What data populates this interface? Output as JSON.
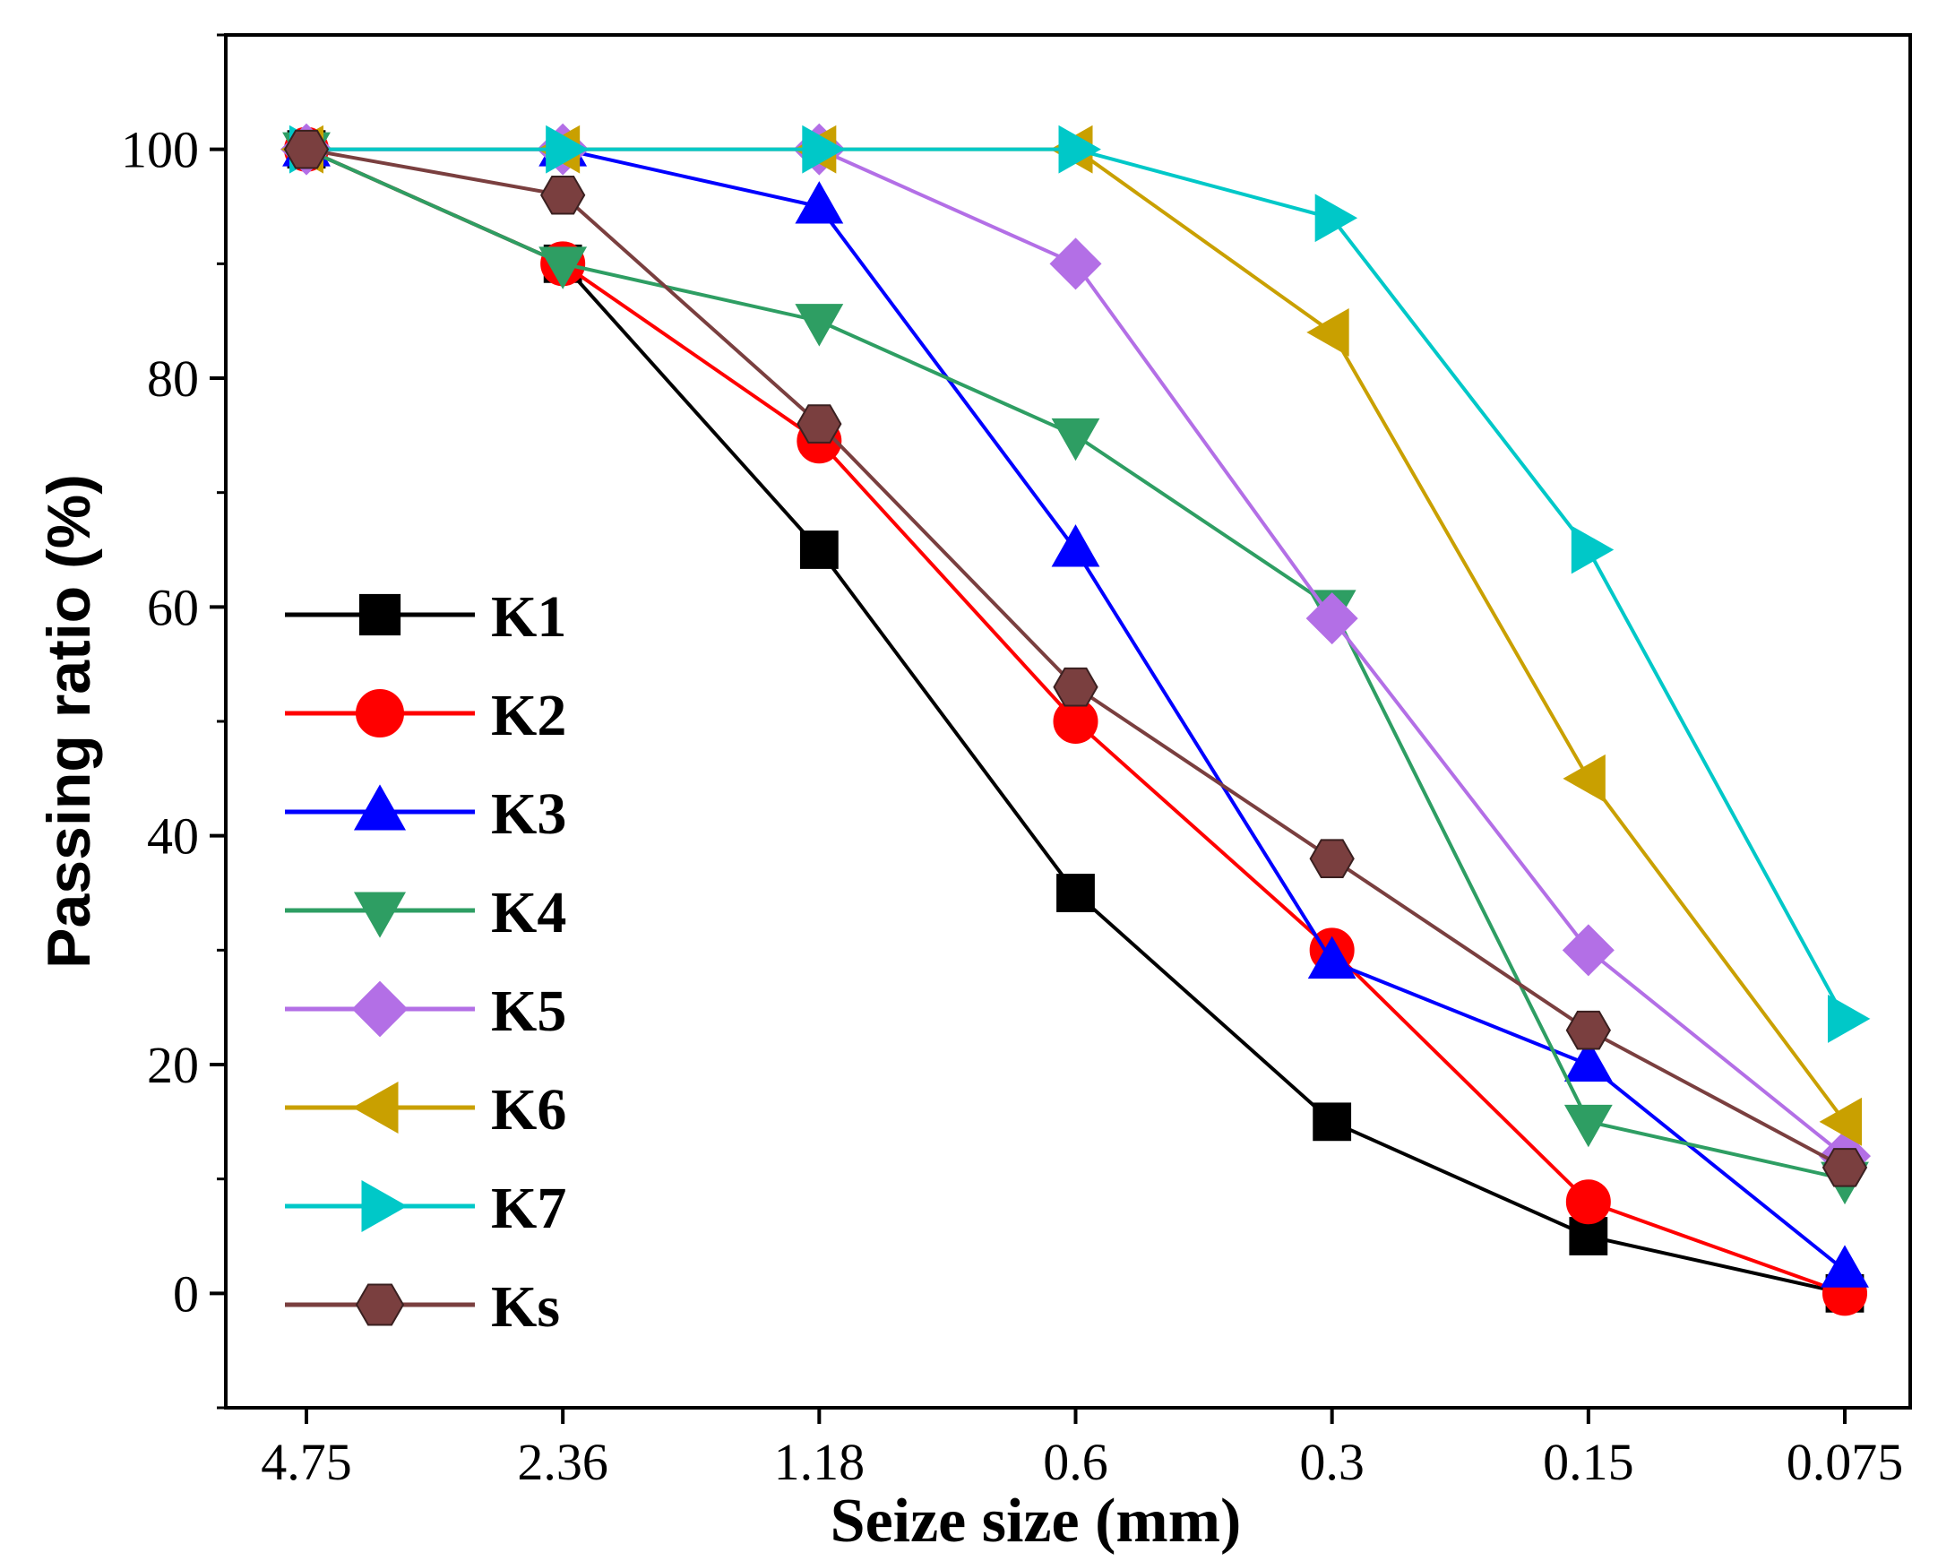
{
  "chart_data": {
    "type": "line",
    "title": "",
    "xlabel": "Seize size (mm)",
    "ylabel": "Passing ratio (%)",
    "categories": [
      "4.75",
      "2.36",
      "1.18",
      "0.6",
      "0.3",
      "0.15",
      "0.075"
    ],
    "ylim": [
      -10,
      110
    ],
    "yticks": [
      0,
      20,
      40,
      60,
      80,
      100
    ],
    "grid": false,
    "legend_position": "left",
    "series": [
      {
        "name": "K1",
        "color": "#000000",
        "marker": "square",
        "values": [
          100,
          90,
          65,
          35,
          15,
          5,
          0
        ]
      },
      {
        "name": "K2",
        "color": "#ff0000",
        "marker": "circle",
        "values": [
          100,
          90,
          74.5,
          50,
          30,
          8,
          0
        ]
      },
      {
        "name": "K3",
        "color": "#0000ff",
        "marker": "triangle-up",
        "values": [
          100,
          100,
          95,
          65,
          29,
          20,
          2
        ]
      },
      {
        "name": "K4",
        "color": "#2e9e63",
        "marker": "triangle-down",
        "values": [
          100,
          90,
          85,
          75,
          60,
          15,
          10
        ]
      },
      {
        "name": "K5",
        "color": "#b36fe6",
        "marker": "diamond",
        "values": [
          100,
          100,
          100,
          90,
          59,
          30,
          12
        ]
      },
      {
        "name": "K6",
        "color": "#c9a000",
        "marker": "triangle-left",
        "values": [
          100,
          100,
          100,
          100,
          84,
          45,
          15
        ]
      },
      {
        "name": "K7",
        "color": "#00c8c8",
        "marker": "triangle-right",
        "values": [
          100,
          100,
          100,
          100,
          94,
          65,
          24
        ]
      },
      {
        "name": "Ks",
        "color": "#7a3f3f",
        "marker": "hexagon",
        "values": [
          100,
          96,
          76,
          53,
          38,
          23,
          11
        ]
      }
    ]
  }
}
